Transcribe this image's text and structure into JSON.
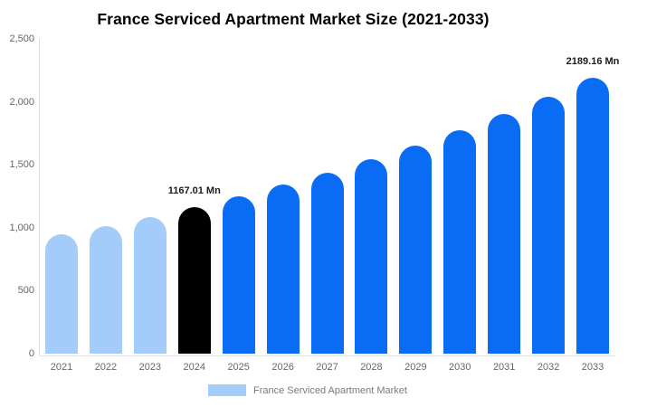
{
  "title": "France Serviced Apartment Market Size (2021-2033)",
  "chart_data": {
    "type": "bar",
    "title": "France Serviced Apartment Market Size (2021-2033)",
    "categories": [
      "2021",
      "2022",
      "2023",
      "2024",
      "2025",
      "2026",
      "2027",
      "2028",
      "2029",
      "2030",
      "2031",
      "2032",
      "2033"
    ],
    "values": [
      946.3,
      1014.79,
      1088.25,
      1167.01,
      1251.47,
      1342.05,
      1439.18,
      1543.34,
      1655.04,
      1774.82,
      1903.27,
      2041.02,
      2189.16
    ],
    "unit": "Mn",
    "ylim": [
      0,
      2500
    ],
    "ytick_labels": [
      "0",
      "500",
      "1,000",
      "1,500",
      "2,000",
      "2,500"
    ],
    "xlabel": "",
    "ylabel": "",
    "grid": false,
    "bar_colors": [
      "#a4ccfa",
      "#a4ccfa",
      "#a4ccfa",
      "#000000",
      "#0a6cf5",
      "#0a6cf5",
      "#0a6cf5",
      "#0a6cf5",
      "#0a6cf5",
      "#0a6cf5",
      "#0a6cf5",
      "#0a6cf5",
      "#0a6cf5"
    ],
    "data_labels": [
      {
        "index": 3,
        "text": "1167.01 Mn"
      },
      {
        "index": 12,
        "text": "2189.16 Mn"
      }
    ],
    "legend": {
      "label": "France Serviced Apartment Market",
      "swatch_color": "#a4ccfa",
      "position": "bottom-center"
    },
    "colors": {
      "historical_bar": "#a4ccfa",
      "base_year_bar": "#000000",
      "forecast_bar": "#0a6cf5",
      "axis_line": "#dcdcdc",
      "tick_text": "#666666",
      "data_label_text": "#1c1c1c",
      "legend_text": "#7a7a7a",
      "title_text": "#000000",
      "background": "#ffffff"
    }
  }
}
